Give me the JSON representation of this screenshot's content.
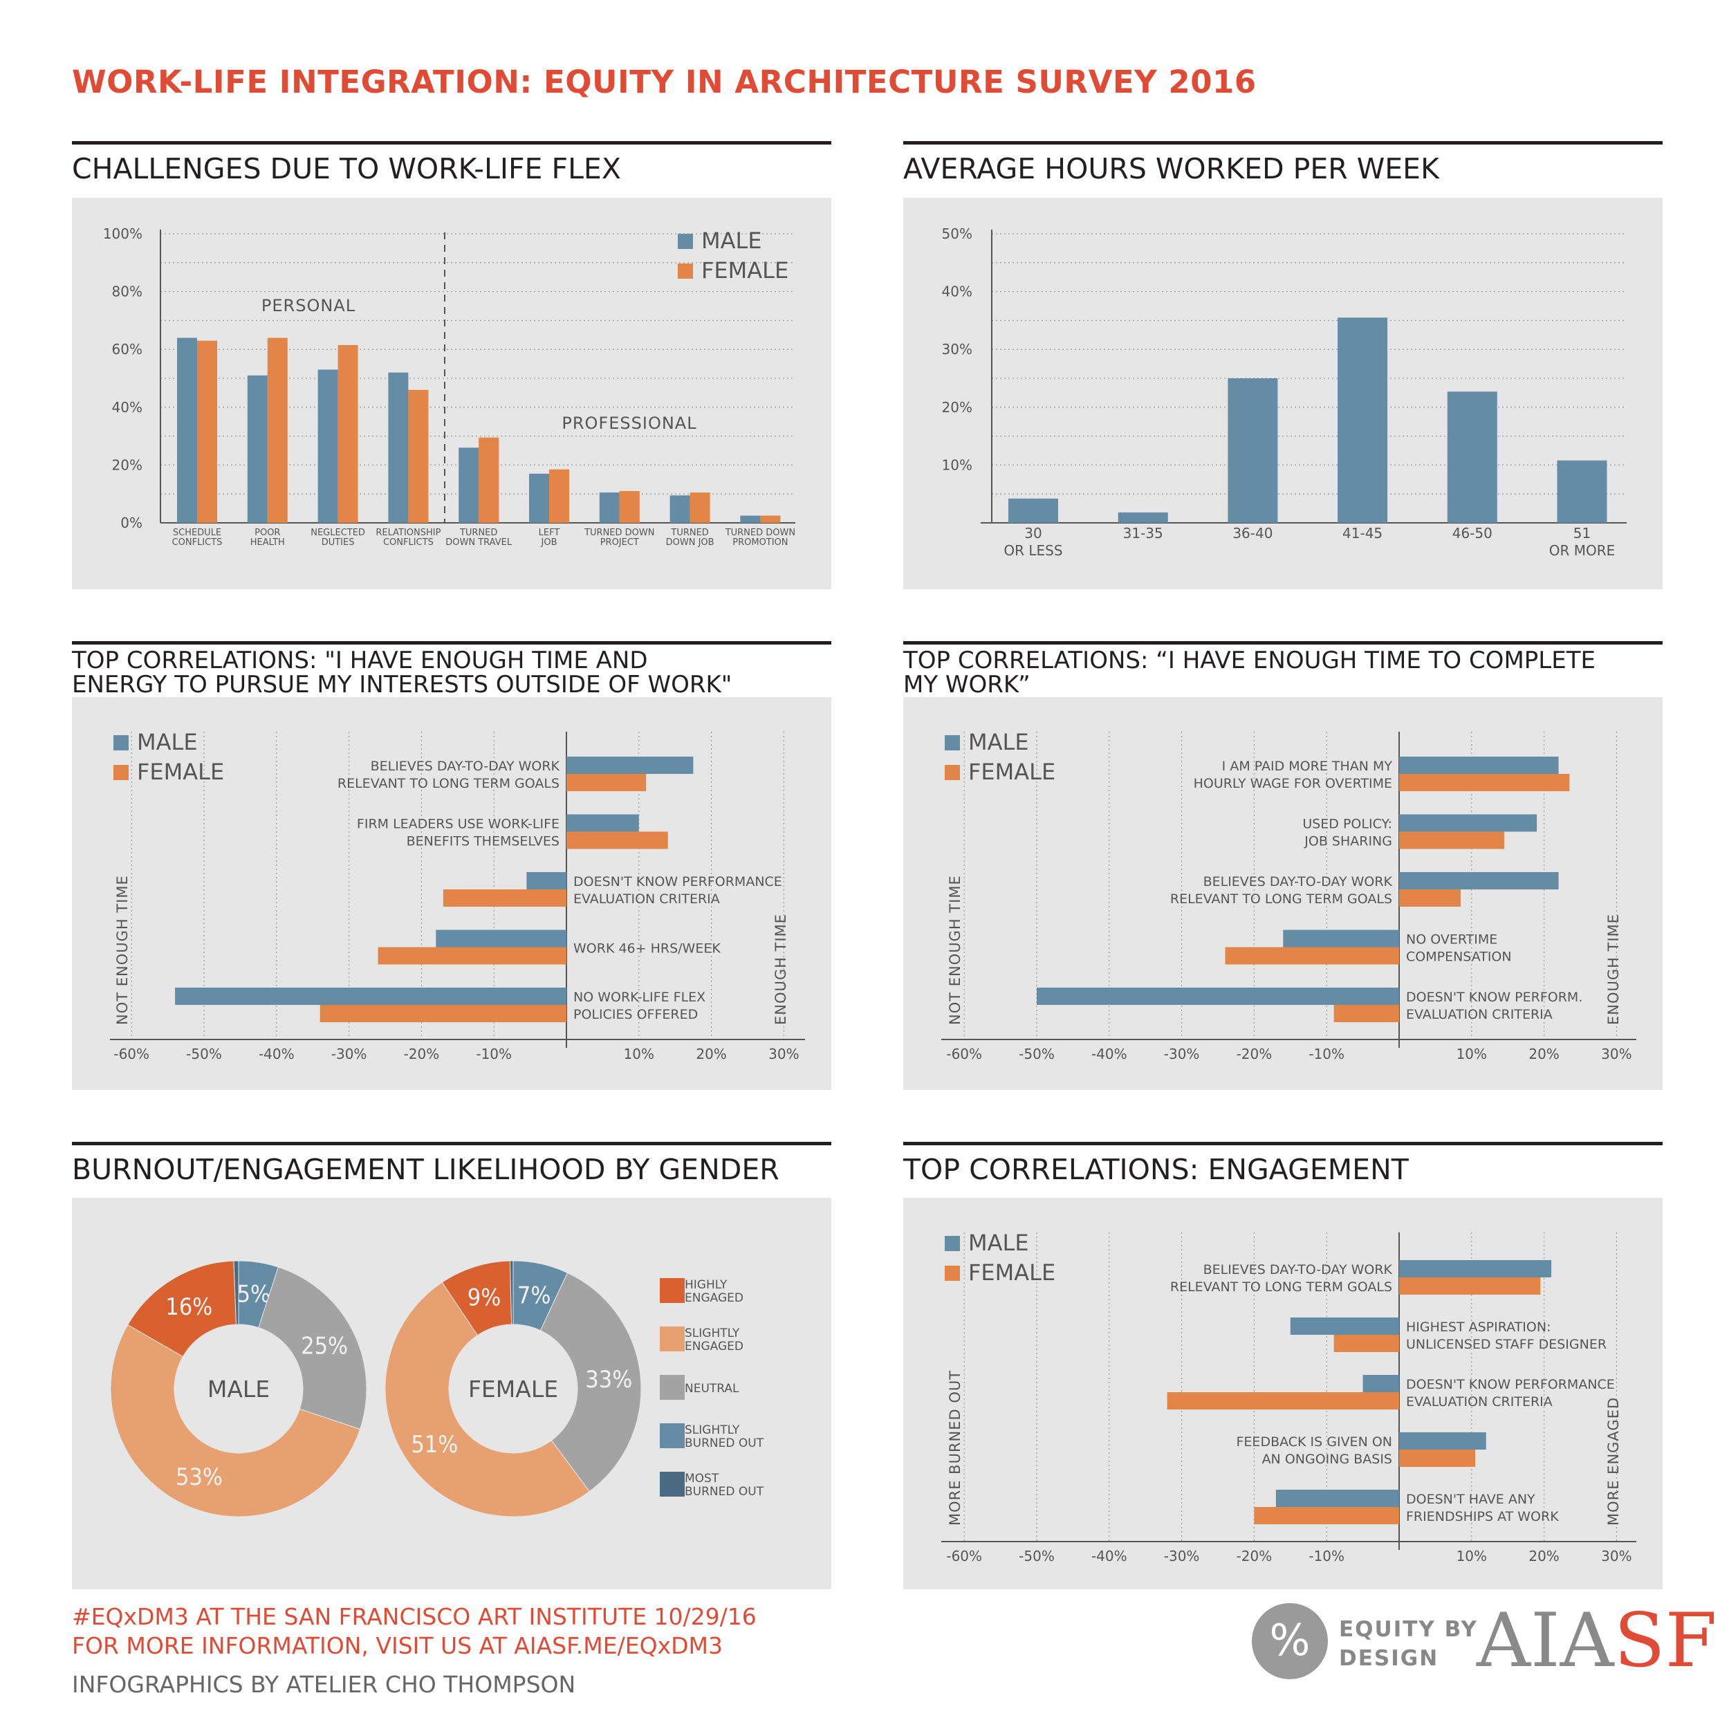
{
  "title": "WORK-LIFE INTEGRATION: EQUITY IN ARCHITECTURE SURVEY 2016",
  "colors": {
    "male": "#648ca5",
    "female": "#e28547",
    "red": "#e04b36"
  },
  "sections": {
    "challenges": "CHALLENGES DUE TO WORK-LIFE FLEX",
    "hours": "AVERAGE HOURS WORKED PER WEEK",
    "corr_energy_l1": "TOP CORRELATIONS: \"I HAVE ENOUGH TIME AND",
    "corr_energy_l2": "ENERGY TO PURSUE MY INTERESTS OUTSIDE OF WORK\"",
    "corr_time_l1": "TOP CORRELATIONS: “I HAVE ENOUGH TIME TO COMPLETE",
    "corr_time_l2": "MY WORK”",
    "burnout": "BURNOUT/ENGAGEMENT LIKELIHOOD BY GENDER",
    "engagement": "TOP CORRELATIONS: ENGAGEMENT"
  },
  "chart_data": [
    {
      "id": "challenges",
      "type": "bar",
      "title": "CHALLENGES DUE TO WORK-LIFE FLEX",
      "ylim": [
        0,
        100
      ],
      "yticks": [
        "0%",
        "20%",
        "40%",
        "60%",
        "80%",
        "100%"
      ],
      "legend": [
        "MALE",
        "FEMALE"
      ],
      "group_labels": [
        "PERSONAL",
        "PROFESSIONAL"
      ],
      "categories": [
        [
          "SCHEDULE",
          "CONFLICTS"
        ],
        [
          "POOR",
          "HEALTH"
        ],
        [
          "NEGLECTED",
          "DUTIES"
        ],
        [
          "RELATIONSHIP",
          "CONFLICTS"
        ],
        [
          "TURNED",
          "DOWN TRAVEL"
        ],
        [
          "LEFT",
          "JOB"
        ],
        [
          "TURNED DOWN",
          "PROJECT"
        ],
        [
          "TURNED",
          "DOWN JOB"
        ],
        [
          "TURNED DOWN",
          "PROMOTION"
        ]
      ],
      "series": [
        {
          "name": "MALE",
          "values": [
            64,
            51,
            53,
            52,
            26,
            17,
            10.5,
            9.5,
            2.5
          ]
        },
        {
          "name": "FEMALE",
          "values": [
            63,
            64,
            61.5,
            46,
            29.5,
            18.5,
            11,
            10.5,
            2.5
          ]
        }
      ]
    },
    {
      "id": "hours",
      "type": "bar",
      "title": "AVERAGE HOURS WORKED PER WEEK",
      "ylim": [
        0,
        50
      ],
      "yticks": [
        "10%",
        "20%",
        "30%",
        "40%",
        "50%"
      ],
      "categories": [
        [
          "30",
          "OR LESS"
        ],
        [
          "31-35"
        ],
        [
          "36-40"
        ],
        [
          "41-45"
        ],
        [
          "46-50"
        ],
        [
          "51",
          "OR MORE"
        ]
      ],
      "values": [
        4.2,
        1.8,
        25,
        35.5,
        22.7,
        10.8
      ]
    },
    {
      "id": "corr_energy",
      "type": "bar",
      "orientation": "horizontal",
      "title": "TOP CORRELATIONS: \"I HAVE ENOUGH TIME AND ENERGY TO PURSUE MY INTERESTS OUTSIDE OF WORK\"",
      "xlim": [
        -60,
        30
      ],
      "xticks": [
        "-60%",
        "-50%",
        "-40%",
        "-30%",
        "-20%",
        "-10%",
        "10%",
        "20%",
        "30%"
      ],
      "legend": [
        "MALE",
        "FEMALE"
      ],
      "axis_left": "NOT ENOUGH TIME",
      "axis_right": "ENOUGH TIME",
      "items": [
        {
          "label": [
            "BELIEVES DAY-TO-DAY WORK",
            "RELEVANT TO LONG TERM GOALS"
          ],
          "male": 17.5,
          "female": 11
        },
        {
          "label": [
            "FIRM LEADERS USE WORK-LIFE",
            "BENEFITS THEMSELVES"
          ],
          "male": 10,
          "female": 14
        },
        {
          "label": [
            "DOESN'T KNOW PERFORMANCE",
            "EVALUATION CRITERIA"
          ],
          "male": -5.5,
          "female": -17
        },
        {
          "label": [
            "WORK 46+ HRS/WEEK"
          ],
          "male": -18,
          "female": -26
        },
        {
          "label": [
            "NO WORK-LIFE FLEX",
            "POLICIES OFFERED"
          ],
          "male": -54,
          "female": -34
        }
      ]
    },
    {
      "id": "corr_time",
      "type": "bar",
      "orientation": "horizontal",
      "title": "TOP CORRELATIONS: “I HAVE ENOUGH TIME TO COMPLETE MY WORK”",
      "xlim": [
        -60,
        30
      ],
      "xticks": [
        "-60%",
        "-50%",
        "-40%",
        "-30%",
        "-20%",
        "-10%",
        "10%",
        "20%",
        "30%"
      ],
      "legend": [
        "MALE",
        "FEMALE"
      ],
      "axis_left": "NOT ENOUGH TIME",
      "axis_right": "ENOUGH TIME",
      "items": [
        {
          "label": [
            "I AM PAID MORE THAN MY",
            "HOURLY WAGE FOR OVERTIME"
          ],
          "male": 22,
          "female": 23.5
        },
        {
          "label": [
            "USED POLICY:",
            "JOB SHARING"
          ],
          "male": 19,
          "female": 14.5
        },
        {
          "label": [
            "BELIEVES DAY-TO-DAY WORK",
            "RELEVANT TO LONG TERM GOALS"
          ],
          "male": 22,
          "female": 8.5
        },
        {
          "label": [
            "NO OVERTIME",
            "COMPENSATION"
          ],
          "male": -16,
          "female": -24
        },
        {
          "label": [
            "DOESN'T KNOW PERFORM.",
            "EVALUATION CRITERIA"
          ],
          "male": -50,
          "female": -9
        }
      ]
    },
    {
      "id": "engagement",
      "type": "bar",
      "orientation": "horizontal",
      "title": "TOP CORRELATIONS: ENGAGEMENT",
      "xlim": [
        -60,
        30
      ],
      "xticks": [
        "-60%",
        "-50%",
        "-40%",
        "-30%",
        "-20%",
        "-10%",
        "10%",
        "20%",
        "30%"
      ],
      "legend": [
        "MALE",
        "FEMALE"
      ],
      "axis_left": "MORE BURNED OUT",
      "axis_right": "MORE ENGAGED",
      "items": [
        {
          "label": [
            "BELIEVES DAY-TO-DAY WORK",
            "RELEVANT TO LONG TERM GOALS"
          ],
          "male": 21,
          "female": 19.5
        },
        {
          "label": [
            "HIGHEST ASPIRATION:",
            "UNLICENSED STAFF DESIGNER"
          ],
          "male": -15,
          "female": -9
        },
        {
          "label": [
            "DOESN'T KNOW PERFORMANCE",
            "EVALUATION CRITERIA"
          ],
          "male": -5,
          "female": -32
        },
        {
          "label": [
            "FEEDBACK IS GIVEN ON",
            "AN ONGOING BASIS"
          ],
          "male": 12,
          "female": 10.5
        },
        {
          "label": [
            "DOESN'T HAVE ANY",
            "FRIENDSHIPS AT WORK"
          ],
          "male": -17,
          "female": -20
        }
      ]
    },
    {
      "id": "burnout",
      "type": "pie",
      "title": "BURNOUT/ENGAGEMENT LIKELIHOOD BY GENDER",
      "legend": [
        {
          "label": [
            "HIGHLY",
            "ENGAGED"
          ],
          "color": "#d9602f"
        },
        {
          "label": [
            "SLIGHTLY",
            "ENGAGED"
          ],
          "color": "#e7a06f"
        },
        {
          "label": [
            "NEUTRAL"
          ],
          "color": "#a3a3a3"
        },
        {
          "label": [
            "SLIGHTLY",
            "BURNED OUT"
          ],
          "color": "#648ca5"
        },
        {
          "label": [
            "MOST",
            "BURNED OUT"
          ],
          "color": "#4a6a82"
        }
      ],
      "donuts": [
        {
          "name": "MALE",
          "order": [
            "SLIGHTLY BURNED OUT",
            "NEUTRAL",
            "SLIGHTLY ENGAGED",
            "HIGHLY ENGAGED",
            "MOST BURNED OUT"
          ],
          "values": [
            5,
            25,
            53,
            16,
            0.6
          ],
          "labels": [
            "5%",
            "25%",
            "53%",
            "16%",
            ""
          ]
        },
        {
          "name": "FEMALE",
          "order": [
            "SLIGHTLY BURNED OUT",
            "NEUTRAL",
            "SLIGHTLY ENGAGED",
            "HIGHLY ENGAGED",
            "MOST BURNED OUT"
          ],
          "values": [
            7,
            33,
            51,
            9,
            0.4
          ],
          "labels": [
            "7%",
            "33%",
            "51%",
            "9%",
            ""
          ]
        }
      ]
    }
  ],
  "footer": {
    "line1": "#EQxDM3 AT THE SAN FRANCISCO ART INSTITUTE 10/29/16",
    "line2": "FOR MORE INFORMATION, VISIT US AT AIASF.ME/EQxDM3",
    "line3": "INFOGRAPHICS BY ATELIER CHO THOMPSON",
    "logo_symbol": "%",
    "logo_line1": "EQUITY BY",
    "logo_line2": "DESIGN",
    "brand_part1": "AIA",
    "brand_part2": "SF"
  }
}
